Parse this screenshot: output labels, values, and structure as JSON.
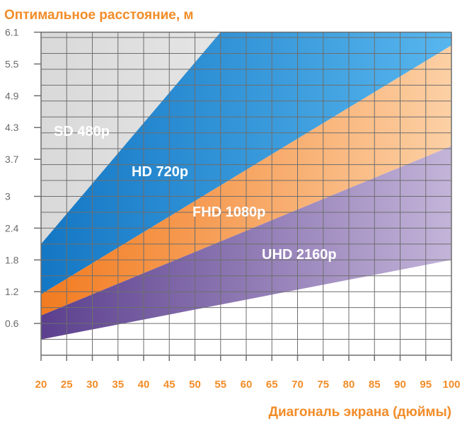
{
  "chart_data": {
    "type": "area",
    "ylabel": "Оптимальное расстояние, м",
    "xlabel": "Диагональ экрана (дюймы)",
    "x_ticks": [
      20,
      25,
      30,
      35,
      40,
      45,
      50,
      55,
      60,
      65,
      70,
      75,
      80,
      85,
      90,
      95,
      100
    ],
    "y_ticks": [
      "0.6",
      "1.2",
      "1.8",
      "2.4",
      "3",
      "3.7",
      "4.3",
      "4.9",
      "5.5",
      "6.1"
    ],
    "y_tick_values": [
      0.6,
      1.2,
      1.8,
      2.4,
      3,
      3.7,
      4.3,
      4.9,
      5.5,
      6.1
    ],
    "xlim": [
      20,
      100
    ],
    "ylim": [
      0,
      6.1
    ],
    "grid": true,
    "series": [
      {
        "name": "SD 480p",
        "color": "#dcdcdc",
        "x": [
          20,
          100
        ],
        "y": [
          6.1,
          6.1
        ]
      },
      {
        "name": "HD 720p",
        "color": "#1e88d0",
        "x": [
          20,
          55
        ],
        "y": [
          2.1,
          6.1
        ]
      },
      {
        "name": "FHD 1080p",
        "color": "#f5822a",
        "x": [
          20,
          100
        ],
        "y": [
          1.15,
          5.85
        ]
      },
      {
        "name": "UHD 2160p",
        "color": "#6f4e9c",
        "x": [
          20,
          100
        ],
        "y": [
          0.75,
          3.95
        ]
      }
    ],
    "boundaries": [
      {
        "x": [
          20,
          100
        ],
        "y": [
          0.3,
          1.8
        ]
      }
    ]
  }
}
